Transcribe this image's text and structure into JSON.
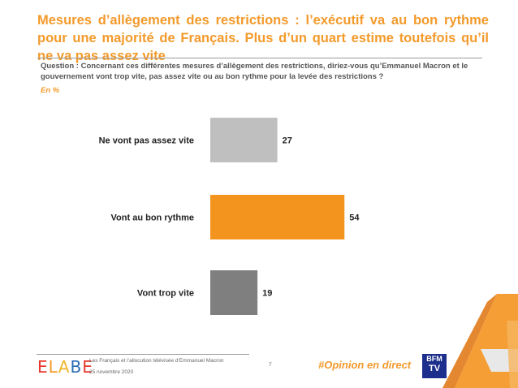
{
  "title": "Mesures d’allègement des restrictions : l’exécutif va au bon rythme pour une majorité de Français. Plus d’un quart estime toutefois qu’il ne va pas assez vite",
  "question": "Question : Concernant ces différentes mesures d’allègement des restrictions, diriez-vous qu’Emmanuel Macron et le gouvernement vont trop vite, pas assez vite ou au bon rythme pour la levée des restrictions ?",
  "unit_label": "En %",
  "footer": {
    "logo_letters": [
      "E",
      "L",
      "A",
      "B",
      "E"
    ],
    "logo_colors": [
      "#E8362B",
      "#F39A2B",
      "#F2B52E",
      "#2A6CB5",
      "#E8362B"
    ],
    "line1": "Les Français et l’allocution télévisée d’Emmanuel Macron",
    "line2": "25 novembre 2020",
    "page_number": "7",
    "hashtag": "#Opinion en direct",
    "broadcaster_top": "BFM",
    "broadcaster_bottom": "TV"
  },
  "chart_data": {
    "type": "bar",
    "orientation": "horizontal",
    "categories": [
      "Ne vont pas assez vite",
      "Vont au bon rythme",
      "Vont trop vite"
    ],
    "values": [
      27,
      54,
      19
    ],
    "colors": [
      "#BFBFBF",
      "#F3941F",
      "#7F7F7F"
    ],
    "xlim": [
      0,
      100
    ],
    "grid": false,
    "legend": "none"
  }
}
